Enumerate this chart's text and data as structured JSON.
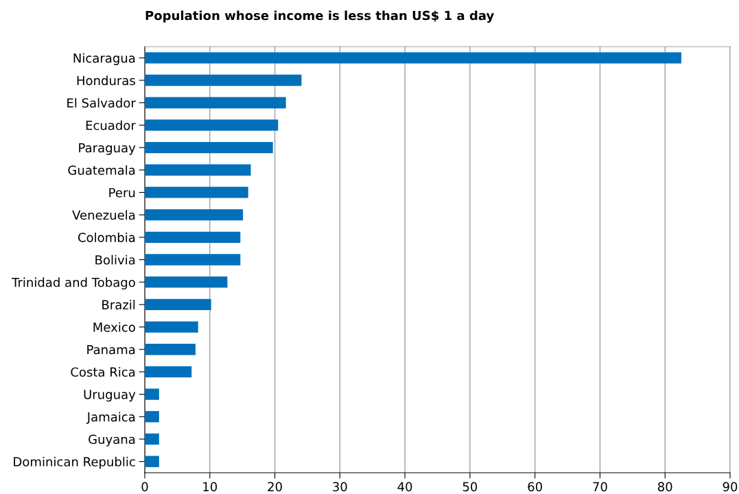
{
  "chart_data": {
    "type": "bar",
    "orientation": "horizontal",
    "title": "Population whose income is less than US$ 1 a day",
    "categories": [
      "Nicaragua",
      "Honduras",
      "El Salvador",
      "Ecuador",
      "Paraguay",
      "Guatemala",
      "Peru",
      "Venezuela",
      "Colombia",
      "Bolivia",
      "Trinidad and Tobago",
      "Brazil",
      "Mexico",
      "Panama",
      "Costa Rica",
      "Uruguay",
      "Jamaica",
      "Guyana",
      "Dominican Republic"
    ],
    "values": [
      82.5,
      24.1,
      21.7,
      20.5,
      19.7,
      16.3,
      15.9,
      15.1,
      14.7,
      14.7,
      12.7,
      10.2,
      8.2,
      7.8,
      7.2,
      2.2,
      2.2,
      2.2,
      2.2
    ],
    "color": "#0070bb",
    "xlim": [
      0,
      90
    ],
    "xticks": [
      0,
      10,
      20,
      30,
      40,
      50,
      60,
      70,
      80,
      90
    ],
    "grid": "x"
  }
}
